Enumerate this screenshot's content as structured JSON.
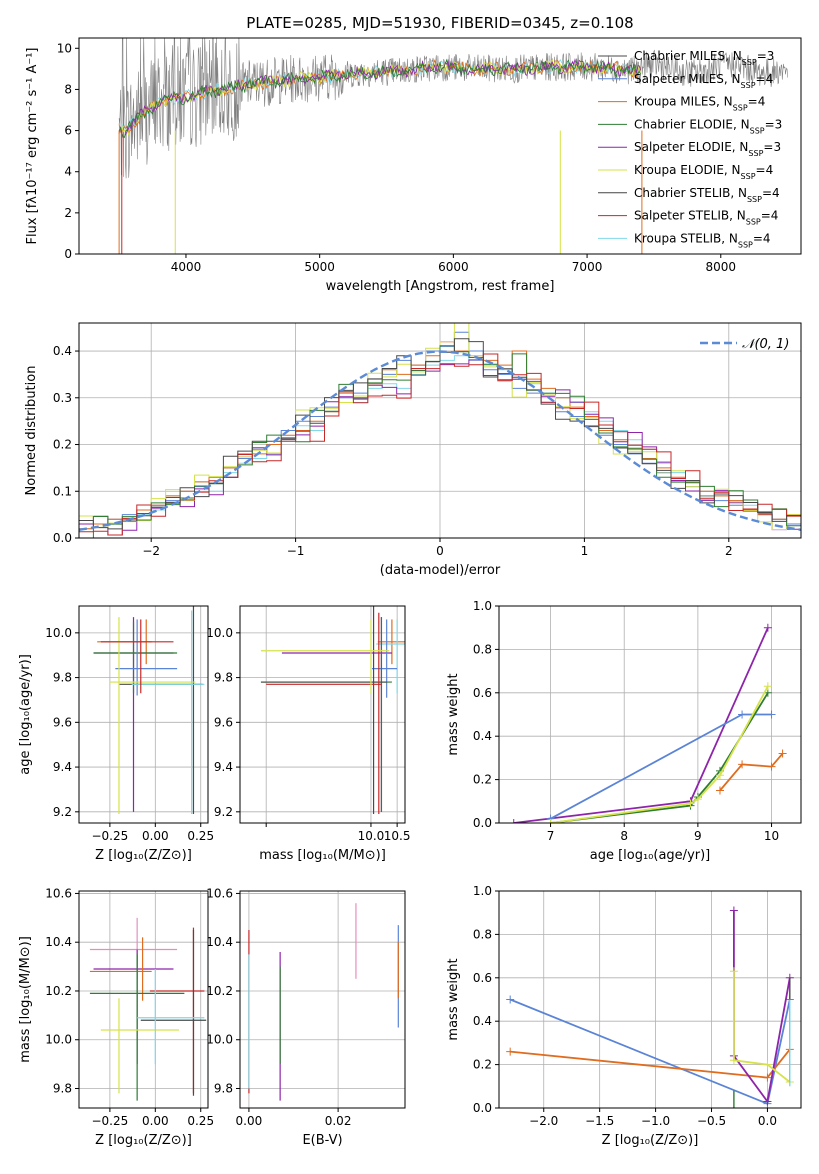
{
  "figure_title": "PLATE=0285, MJD=51930, FIBERID=0345, z=0.108",
  "colors": {
    "axis": "#000000",
    "grid": "#b0b0b0",
    "gray_spectrum": "#808080"
  },
  "series_styles": [
    {
      "color": "#4a4a4a"
    },
    {
      "color": "#5b84d6"
    },
    {
      "color": "#df6c1f"
    },
    {
      "color": "#2e7d32"
    },
    {
      "color": "#8e24aa"
    },
    {
      "color": "#d6e24a"
    },
    {
      "color": "#444444"
    },
    {
      "color": "#c62828"
    },
    {
      "color": "#80d8e8"
    }
  ],
  "spectrum_panel": {
    "xlabel": "wavelength [Angstrom, rest frame]",
    "ylabel": "Flux [fλ10⁻¹⁷ erg cm⁻² s⁻¹ A⁻¹]",
    "legend": [
      "Chabrier MILES, N_SSP=3",
      "Salpeter MILES, N_SSP=4",
      "Kroupa MILES, N_SSP=4",
      "Chabrier ELODIE, N_SSP=3",
      "Salpeter ELODIE, N_SSP=3",
      "Kroupa ELODIE, N_SSP=4",
      "Chabrier STELIB, N_SSP=4",
      "Salpeter STELIB, N_SSP=4",
      "Kroupa STELIB, N_SSP=4"
    ],
    "legend_sub": "SSP",
    "legend_parts": [
      {
        "pre": "Chabrier MILES, N",
        "post": "=3"
      },
      {
        "pre": "Salpeter MILES, N",
        "post": "=4"
      },
      {
        "pre": "Kroupa MILES, N",
        "post": "=4"
      },
      {
        "pre": "Chabrier ELODIE, N",
        "post": "=3"
      },
      {
        "pre": "Salpeter ELODIE, N",
        "post": "=3"
      },
      {
        "pre": "Kroupa ELODIE, N",
        "post": "=4"
      },
      {
        "pre": "Chabrier STELIB, N",
        "post": "=4"
      },
      {
        "pre": "Salpeter STELIB, N",
        "post": "=4"
      },
      {
        "pre": "Kroupa STELIB, N",
        "post": "=4"
      }
    ]
  },
  "hist_panel": {
    "xlabel": "(data-model)/error",
    "ylabel": "Normed distribution",
    "legend": "𝒩(0, 1)"
  },
  "small_panels": {
    "age_vs_Z": {
      "xlabel": "Z [log₁₀(Z/Z⊙)]",
      "ylabel": "age  [log₁₀(age/yr)]"
    },
    "age_vs_mass": {
      "xlabel": "mass [log₁₀(M/M⊙)]"
    },
    "mass_vs_Z": {
      "xlabel": "Z [log₁₀(Z/Z⊙)]",
      "ylabel": "mass [log₁₀(M/M⊙)]"
    },
    "mass_vs_ebv": {
      "xlabel": "E(B-V)"
    },
    "weight_vs_age": {
      "xlabel": "age  [log₁₀(age/yr)]",
      "ylabel": "mass weight"
    },
    "weight_vs_Z": {
      "xlabel": "Z [log₁₀(Z/Z⊙)]",
      "ylabel": "mass weight"
    }
  },
  "chart_data": [
    {
      "type": "line",
      "title": "PLATE=0285, MJD=51930, FIBERID=0345, z=0.108",
      "xlabel": "wavelength [Angstrom, rest frame]",
      "ylabel": "Flux [fλ10⁻¹⁷ erg cm⁻² s⁻¹ A⁻¹]",
      "xlim": [
        3200,
        8600
      ],
      "ylim": [
        0,
        10.5
      ],
      "xticks": [
        4000,
        5000,
        6000,
        7000,
        8000
      ],
      "yticks": [
        0,
        2,
        4,
        6,
        8,
        10
      ],
      "grid": false,
      "legend_position": "upper right",
      "series": [
        {
          "name": "Chabrier MILES, N_SSP=3",
          "x": [
            3500,
            3550,
            3600,
            3700,
            3800,
            3900,
            4000,
            4100,
            4300,
            4500,
            4800,
            5000,
            5300,
            5600,
            5900,
            6200,
            6500,
            6800,
            7000,
            7200,
            7400
          ],
          "y": [
            6.1,
            5.9,
            6.4,
            6.9,
            7.4,
            7.6,
            7.6,
            7.8,
            8.0,
            8.3,
            8.5,
            8.6,
            8.8,
            8.9,
            9.1,
            9.0,
            9.0,
            9.1,
            9.1,
            9.0,
            8.9
          ]
        },
        {
          "name": "Kroupa STELIB, N_SSP=4",
          "x": [
            3500,
            3550,
            3600,
            3700,
            3800,
            3900,
            4000,
            4100,
            4300,
            4500,
            4800,
            5000,
            5300,
            5600,
            5900,
            6200,
            6500,
            6800,
            7000,
            7200,
            7400
          ],
          "y": [
            6.2,
            5.8,
            6.5,
            7.0,
            7.3,
            7.5,
            7.7,
            7.9,
            8.0,
            8.3,
            8.6,
            8.7,
            8.8,
            9.0,
            9.1,
            9.1,
            9.0,
            9.2,
            9.1,
            9.1,
            9.0
          ]
        }
      ],
      "observed_spectrum": {
        "color": "gray",
        "x_range": [
          3500,
          8500
        ],
        "y_typical": [
          6,
          9.5
        ]
      }
    },
    {
      "type": "bar",
      "title": "",
      "xlabel": "(data-model)/error",
      "ylabel": "Normed distribution",
      "xlim": [
        -2.5,
        2.5
      ],
      "ylim": [
        0,
        0.46
      ],
      "xticks": [
        -2,
        -1,
        0,
        1,
        2
      ],
      "yticks": [
        0.0,
        0.1,
        0.2,
        0.3,
        0.4
      ],
      "grid": true,
      "legend_position": "upper right",
      "gaussian": {
        "name": "𝒩(0, 1)",
        "mean": 0,
        "sigma": 1
      },
      "bin_width": 0.1,
      "bins_start": -2.5,
      "series_values": [
        [
          0.02,
          0.03,
          0.03,
          0.04,
          0.05,
          0.06,
          0.09,
          0.08,
          0.12,
          0.1,
          0.14,
          0.16,
          0.17,
          0.18,
          0.21,
          0.24,
          0.23,
          0.27,
          0.29,
          0.29,
          0.32,
          0.33,
          0.32,
          0.35,
          0.37,
          0.38,
          0.39,
          0.38,
          0.37,
          0.36,
          0.34,
          0.33,
          0.31,
          0.3,
          0.29,
          0.27,
          0.25,
          0.23,
          0.21,
          0.19,
          0.16,
          0.14,
          0.12,
          0.1,
          0.09,
          0.08,
          0.07,
          0.05,
          0.04,
          0.03
        ],
        [
          0.03,
          0.03,
          0.04,
          0.05,
          0.06,
          0.07,
          0.08,
          0.1,
          0.11,
          0.13,
          0.15,
          0.17,
          0.19,
          0.2,
          0.23,
          0.25,
          0.26,
          0.28,
          0.3,
          0.31,
          0.34,
          0.35,
          0.38,
          0.37,
          0.4,
          0.41,
          0.44,
          0.4,
          0.36,
          0.35,
          0.32,
          0.31,
          0.29,
          0.27,
          0.26,
          0.24,
          0.22,
          0.2,
          0.18,
          0.16,
          0.14,
          0.12,
          0.11,
          0.09,
          0.08,
          0.07,
          0.06,
          0.05,
          0.04,
          0.03
        ],
        [
          0.02,
          0.03,
          0.04,
          0.04,
          0.06,
          0.07,
          0.09,
          0.1,
          0.12,
          0.13,
          0.15,
          0.18,
          0.18,
          0.2,
          0.22,
          0.23,
          0.25,
          0.27,
          0.31,
          0.3,
          0.33,
          0.36,
          0.35,
          0.37,
          0.39,
          0.42,
          0.4,
          0.39,
          0.38,
          0.37,
          0.4,
          0.34,
          0.32,
          0.3,
          0.28,
          0.26,
          0.23,
          0.21,
          0.19,
          0.17,
          0.15,
          0.13,
          0.12,
          0.1,
          0.09,
          0.08,
          0.06,
          0.05,
          0.04,
          0.05
        ]
      ]
    },
    {
      "type": "scatter",
      "title": "",
      "xlabel": "Z [log₁₀(Z/Z⊙)]",
      "ylabel": "age  [log₁₀(age/yr)]",
      "xlim": [
        -0.42,
        0.29
      ],
      "ylim": [
        9.15,
        10.12
      ],
      "xticks": [
        -0.25,
        0.0,
        0.25
      ],
      "yticks": [
        9.2,
        9.4,
        9.6,
        9.8,
        10.0
      ],
      "errorbars": [
        {
          "x": -0.05,
          "y": 9.96,
          "xerr": 0.27,
          "yerr": [
            0.1,
            0.1
          ]
        },
        {
          "x": -0.12,
          "y": 9.91,
          "xerr": 0.22,
          "yerr": [
            0.16,
            0.4
          ]
        },
        {
          "x": -0.1,
          "y": 9.84,
          "xerr": 0.12,
          "yerr": [
            0.1,
            0.1
          ]
        },
        {
          "x": 0.21,
          "y": 9.76,
          "xerr": 0.28,
          "yerr": [
            0.56,
            0.37
          ]
        },
        {
          "x": -0.18,
          "y": 9.78,
          "xerr": 0.21,
          "yerr": [
            0.55,
            0.27
          ]
        }
      ]
    },
    {
      "type": "scatter",
      "title": "",
      "xlabel": "mass [log₁₀(M/M⊙)]",
      "ylabel": "",
      "xlim": [
        7.5,
        10.65
      ],
      "ylim": [
        9.15,
        10.12
      ],
      "xticks": [
        8.0,
        10.0,
        10.5
      ],
      "xtick_labels": [
        "",
        "10.0",
        "10.5"
      ],
      "yticks": [
        9.2,
        9.4,
        9.6,
        9.8,
        10.0
      ],
      "errorbars": [
        {
          "x": 10.4,
          "y": 9.96,
          "xerr": 0.3,
          "yerr": [
            0.1,
            0.1
          ]
        },
        {
          "x": 11.0,
          "y": 9.91,
          "xerr": 2.0,
          "yerr": [
            0.16,
            0.4
          ]
        },
        {
          "x": 10.2,
          "y": 9.84,
          "xerr": 0.3,
          "yerr": [
            0.1,
            0.1
          ]
        },
        {
          "x": 11.0,
          "y": 9.77,
          "xerr": 2.0,
          "yerr": [
            0.56,
            0.37
          ]
        }
      ]
    },
    {
      "type": "line",
      "title": "",
      "xlabel": "age  [log₁₀(age/yr)]",
      "ylabel": "mass weight",
      "xlim": [
        6.3,
        10.4
      ],
      "ylim": [
        0.0,
        1.0
      ],
      "xticks": [
        7,
        8,
        9,
        10
      ],
      "yticks": [
        0.0,
        0.2,
        0.4,
        0.6,
        0.8,
        1.0
      ],
      "grid": true,
      "series": [
        {
          "x": [
            6.5,
            8.9,
            9.95
          ],
          "y": [
            0.0,
            0.1,
            0.9
          ]
        },
        {
          "x": [
            7.0,
            9.6,
            10.0
          ],
          "y": [
            0.02,
            0.5,
            0.5
          ]
        },
        {
          "x": [
            9.3,
            9.6,
            10.0,
            10.15
          ],
          "y": [
            0.15,
            0.27,
            0.26,
            0.32
          ]
        },
        {
          "x": [
            7.0,
            8.9,
            9.0,
            9.3,
            9.95
          ],
          "y": [
            0.0,
            0.08,
            0.12,
            0.24,
            0.6
          ]
        },
        {
          "x": [
            7.0,
            8.9,
            9.0,
            9.3,
            9.95
          ],
          "y": [
            0.0,
            0.09,
            0.11,
            0.22,
            0.63
          ]
        }
      ]
    },
    {
      "type": "scatter",
      "title": "",
      "xlabel": "Z [log₁₀(Z/Z⊙)]",
      "ylabel": "mass [log₁₀(M/M⊙)]",
      "xlim": [
        -0.42,
        0.29
      ],
      "ylim": [
        9.72,
        10.61
      ],
      "xticks": [
        -0.25,
        0.0,
        0.25
      ],
      "yticks": [
        9.8,
        10.0,
        10.2,
        10.4,
        10.6
      ],
      "errorbars": [
        {
          "x": -0.12,
          "y": 10.37,
          "xerr": 0.26
        },
        {
          "x": -0.07,
          "y": 10.29,
          "xerr": 0.25,
          "yerr": [
            0.12,
            0.1
          ]
        },
        {
          "x": 0.02,
          "y": 10.2,
          "xerr": 0.24,
          "yerr": [
            0.42,
            0.23
          ]
        }
      ]
    },
    {
      "type": "scatter",
      "title": "",
      "xlabel": "E(B-V)",
      "ylabel": "",
      "xlim": [
        -0.002,
        0.035
      ],
      "ylim": [
        9.72,
        10.61
      ],
      "xticks": [
        0.0,
        0.02
      ],
      "xtick_labels": [
        "0.00",
        "0.02"
      ],
      "yticks": [
        9.8,
        10.0,
        10.2,
        10.4,
        10.6
      ]
    },
    {
      "type": "line",
      "title": "",
      "xlabel": "Z [log₁₀(Z/Z⊙)]",
      "ylabel": "mass weight",
      "xlim": [
        -2.4,
        0.3
      ],
      "ylim": [
        0.0,
        1.0
      ],
      "xticks": [
        -2.0,
        -1.5,
        -1.0,
        -0.5,
        0.0
      ],
      "yticks": [
        0.0,
        0.2,
        0.4,
        0.6,
        0.8,
        1.0
      ],
      "grid": true,
      "series": [
        {
          "x": [
            -2.3,
            0.0,
            0.2
          ],
          "y": [
            0.5,
            0.02,
            0.5
          ]
        },
        {
          "x": [
            -2.3,
            0.0,
            0.2
          ],
          "y": [
            0.26,
            0.14,
            0.27
          ]
        },
        {
          "x": [
            -0.3,
            -0.3,
            0.0,
            0.2
          ],
          "y": [
            0.91,
            0.24,
            0.03,
            0.6
          ]
        },
        {
          "x": [
            -0.3,
            -0.3,
            0.0,
            0.2
          ],
          "y": [
            0.63,
            0.22,
            0.2,
            0.12
          ]
        }
      ]
    }
  ]
}
